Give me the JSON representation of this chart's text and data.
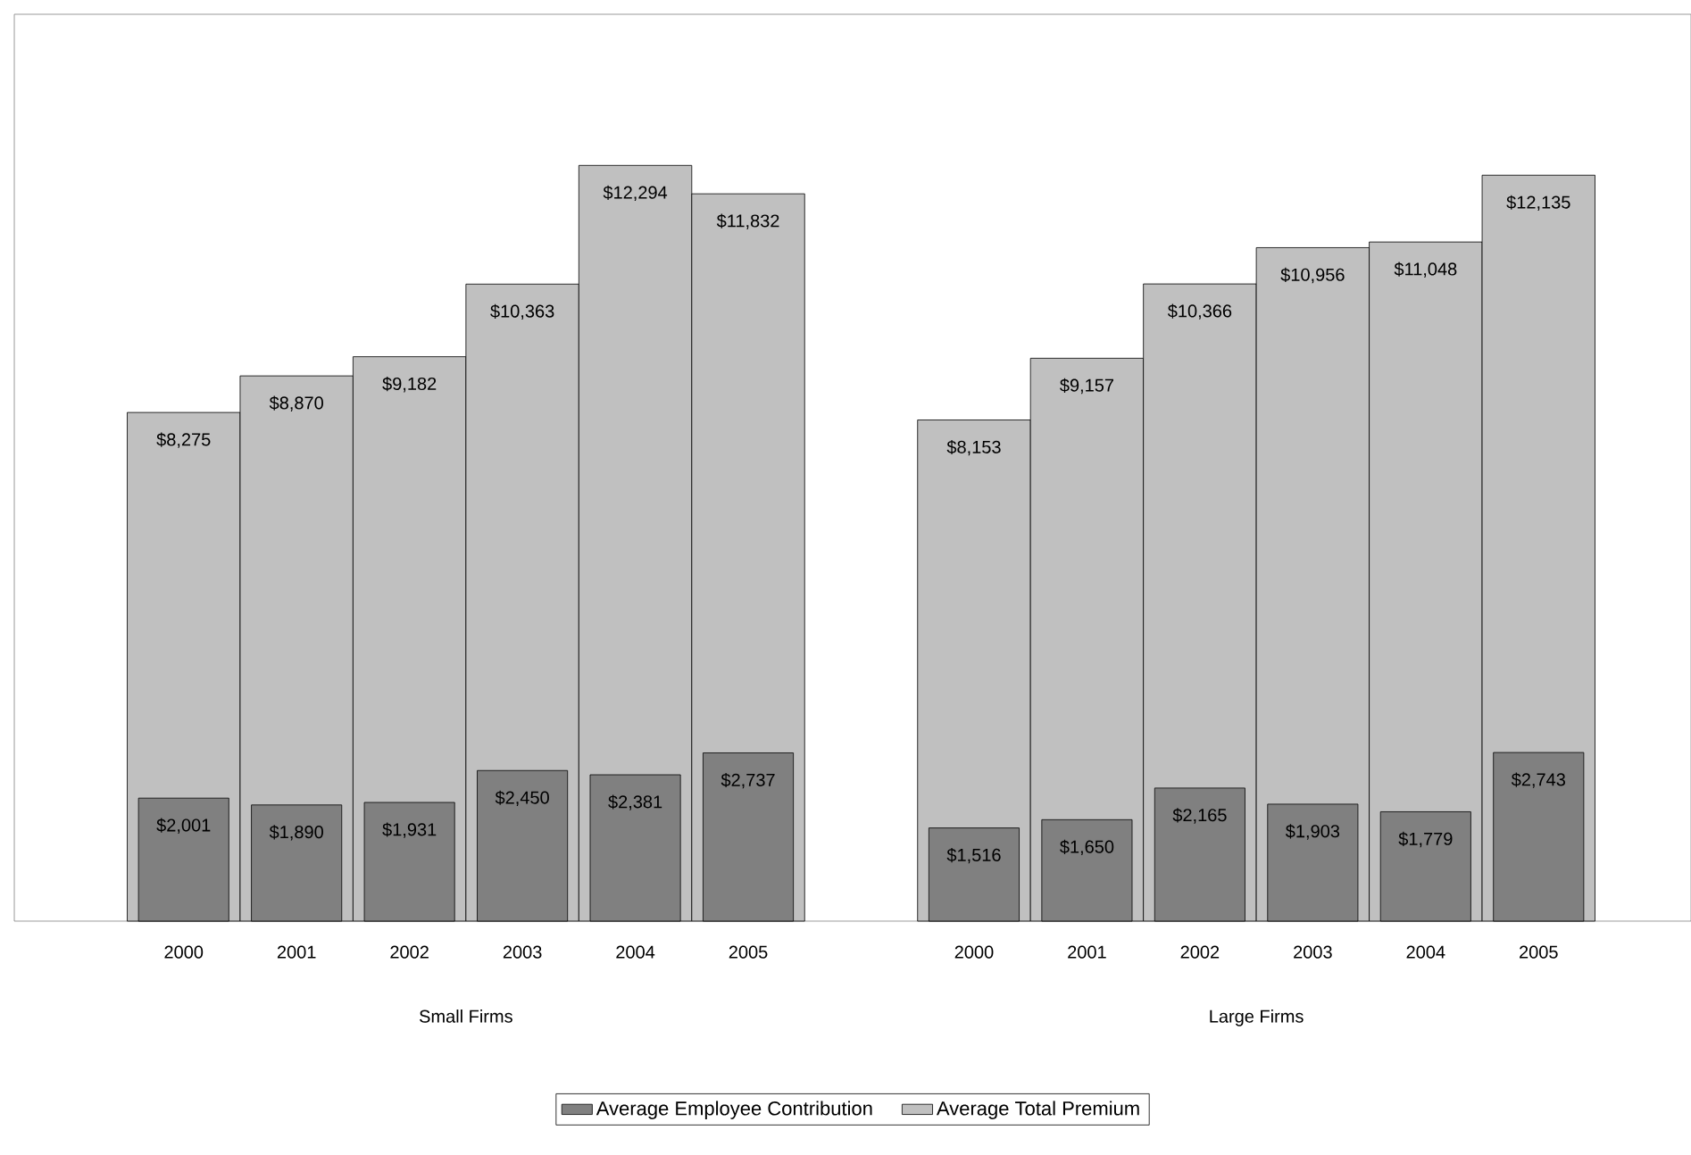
{
  "chart_data": {
    "type": "bar",
    "categories": [
      "2000",
      "2001",
      "2002",
      "2003",
      "2004",
      "2005",
      null,
      "2000",
      "2001",
      "2002",
      "2003",
      "2004",
      "2005"
    ],
    "series": [
      {
        "name": "Average Employee Contribution",
        "color": "#808080",
        "values": [
          2001,
          1890,
          1931,
          2450,
          2381,
          2737,
          null,
          1516,
          1650,
          2165,
          1903,
          1779,
          2743
        ],
        "value_labels": [
          "$2,001",
          "$1,890",
          "$1,931",
          "$2,450",
          "$2,381",
          "$2,737",
          null,
          "$1,516",
          "$1,650",
          "$2,165",
          "$1,903",
          "$1,779",
          "$2,743"
        ]
      },
      {
        "name": "Average Total Premium",
        "color": "#c0c0c0",
        "values": [
          8275,
          8870,
          9182,
          10363,
          12294,
          11832,
          null,
          8153,
          9157,
          10366,
          10956,
          11048,
          12135
        ],
        "value_labels": [
          "$8,275",
          "$8,870",
          "$9,182",
          "$10,363",
          "$12,294",
          "$11,832",
          null,
          "$8,153",
          "$9,157",
          "$10,366",
          "$10,956",
          "$11,048",
          "$12,135"
        ]
      }
    ],
    "annotations": [
      "Small Firms",
      "Large Firms"
    ],
    "tick_labels": "x",
    "legend": "bottom",
    "grid": false
  }
}
